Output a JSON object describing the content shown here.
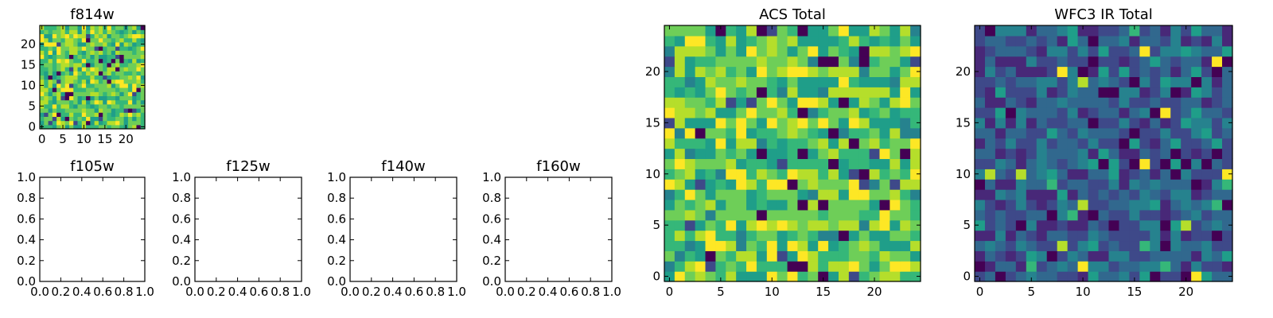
{
  "chart_data": [
    {
      "type": "heatmap",
      "title": "f814w",
      "xlabel": "",
      "ylabel": "",
      "colormap": "viridis",
      "xlim": [
        -0.5,
        24.5
      ],
      "ylim": [
        -0.5,
        24.5
      ],
      "xticks": [
        0,
        5,
        10,
        15,
        20
      ],
      "yticks": [
        0,
        5,
        10,
        15,
        20
      ],
      "xtick_labels": [
        "0",
        "5",
        "10",
        "15",
        "20"
      ],
      "ytick_labels": [
        "0",
        "5",
        "10",
        "15",
        "20"
      ],
      "grid": false,
      "size": [
        25,
        25
      ],
      "cells": "random 25x25 values (dense yellow-green, few dark cells) — individual values not legible"
    },
    {
      "type": "heatmap",
      "title": "f105w",
      "xlabel": "",
      "ylabel": "",
      "xlim": [
        0.0,
        1.0
      ],
      "ylim": [
        0.0,
        1.0
      ],
      "xtick_labels": [
        "0.0",
        "0.2",
        "0.4",
        "0.6",
        "0.8",
        "1.0"
      ],
      "ytick_labels": [
        "0.0",
        "0.2",
        "0.4",
        "0.6",
        "0.8",
        "1.0"
      ],
      "empty": true
    },
    {
      "type": "heatmap",
      "title": "f125w",
      "xlabel": "",
      "ylabel": "",
      "xlim": [
        0.0,
        1.0
      ],
      "ylim": [
        0.0,
        1.0
      ],
      "xtick_labels": [
        "0.0",
        "0.2",
        "0.4",
        "0.6",
        "0.8",
        "1.0"
      ],
      "ytick_labels": [
        "0.0",
        "0.2",
        "0.4",
        "0.6",
        "0.8",
        "1.0"
      ],
      "empty": true
    },
    {
      "type": "heatmap",
      "title": "f140w",
      "xlabel": "",
      "ylabel": "",
      "xlim": [
        0.0,
        1.0
      ],
      "ylim": [
        0.0,
        1.0
      ],
      "xtick_labels": [
        "0.0",
        "0.2",
        "0.4",
        "0.6",
        "0.8",
        "1.0"
      ],
      "ytick_labels": [
        "0.0",
        "0.2",
        "0.4",
        "0.6",
        "0.8",
        "1.0"
      ],
      "empty": true
    },
    {
      "type": "heatmap",
      "title": "f160w",
      "xlabel": "",
      "ylabel": "",
      "xlim": [
        0.0,
        1.0
      ],
      "ylim": [
        0.0,
        1.0
      ],
      "xtick_labels": [
        "0.0",
        "0.2",
        "0.4",
        "0.6",
        "0.8",
        "1.0"
      ],
      "ytick_labels": [
        "0.0",
        "0.2",
        "0.4",
        "0.6",
        "0.8",
        "1.0"
      ],
      "empty": true
    },
    {
      "type": "heatmap",
      "title": "ACS Total",
      "xlabel": "",
      "ylabel": "",
      "colormap": "viridis",
      "xlim": [
        -0.5,
        24.5
      ],
      "ylim": [
        -0.5,
        24.5
      ],
      "xticks": [
        0,
        5,
        10,
        15,
        20
      ],
      "yticks": [
        0,
        5,
        10,
        15,
        20
      ],
      "xtick_labels": [
        "0",
        "5",
        "10",
        "15",
        "20"
      ],
      "ytick_labels": [
        "0",
        "5",
        "10",
        "15",
        "20"
      ],
      "grid": false,
      "size": [
        25,
        25
      ],
      "cells": "random 25x25 values (mostly green/yellow, scattered dark cells) — individual values not legible"
    },
    {
      "type": "heatmap",
      "title": "WFC3 IR Total",
      "xlabel": "",
      "ylabel": "",
      "colormap": "viridis",
      "xlim": [
        -0.5,
        24.5
      ],
      "ylim": [
        -0.5,
        24.5
      ],
      "xticks": [
        0,
        5,
        10,
        15,
        20
      ],
      "yticks": [
        0,
        5,
        10,
        15,
        20
      ],
      "xtick_labels": [
        "0",
        "5",
        "10",
        "15",
        "20"
      ],
      "ytick_labels": [
        "0",
        "5",
        "10",
        "15",
        "20"
      ],
      "grid": false,
      "size": [
        25,
        25
      ],
      "cells": "random 25x25 values (mostly blue/teal, few yellow cells) — individual values not legible"
    }
  ],
  "colors": {
    "viridis": [
      "#440154",
      "#482878",
      "#3e4989",
      "#31688e",
      "#26828e",
      "#1f9e89",
      "#35b779",
      "#6ece58",
      "#b5de2b",
      "#fde725"
    ],
    "axes_edge": "#000000",
    "background": "#ffffff"
  }
}
